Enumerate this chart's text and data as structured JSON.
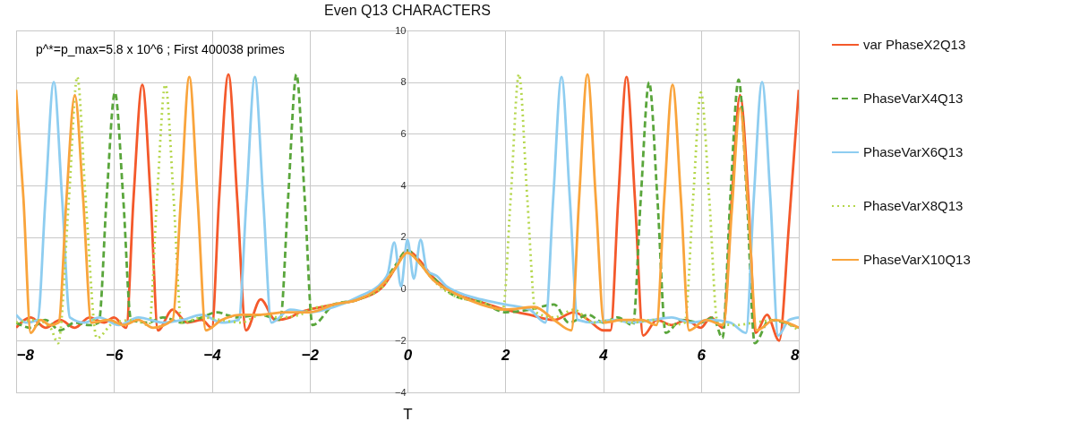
{
  "chart_data": {
    "type": "line",
    "title": "Even Q13 CHARACTERS",
    "xlabel": "T",
    "xlim": [
      -8,
      8
    ],
    "xticks": [
      -8,
      -6,
      -4,
      -2,
      0,
      2,
      4,
      6,
      8
    ],
    "ylim": [
      -4,
      10
    ],
    "yticks": [
      -4,
      -2,
      0,
      2,
      4,
      6,
      8,
      10
    ],
    "grid": true,
    "legend": "right",
    "annotations": [
      "p^*=p_max=5.8 x 10^6 ; First 400038 primes"
    ],
    "series": [
      {
        "name": "var PhaseX2Q13",
        "color": "#f4592b",
        "line_style": "solid",
        "x": [
          -8,
          -7.7,
          -7.4,
          -7.1,
          -6.8,
          -6.5,
          -6.2,
          -6.0,
          -5.75,
          -5.6,
          -5.42,
          -5.25,
          -5.1,
          -4.8,
          -4.5,
          -4.2,
          -4.0,
          -3.85,
          -3.66,
          -3.48,
          -3.3,
          -3.0,
          -2.7,
          -2.4,
          -2.2,
          -2,
          -1.5,
          -1,
          -0.5,
          -0.25,
          0,
          0.25,
          0.5,
          1,
          1.5,
          2,
          2.5,
          3,
          3.4,
          3.7,
          4.0,
          4.15,
          4.31,
          4.48,
          4.65,
          4.82,
          5.1,
          5.4,
          5.7,
          6.0,
          6.2,
          6.45,
          6.63,
          6.8,
          6.97,
          7.12,
          7.35,
          7.6,
          7.8,
          8
        ],
        "values": [
          -1.5,
          -1.1,
          -1.5,
          -1.2,
          -1.5,
          -1.1,
          -1.3,
          -1.1,
          -1.5,
          3.5,
          7.9,
          3.5,
          -1.6,
          -0.8,
          -1.3,
          -1.2,
          -1.5,
          3.5,
          8.3,
          3.5,
          -1.6,
          -0.4,
          -1.2,
          -1.1,
          -0.9,
          -0.8,
          -0.6,
          -0.4,
          0.1,
          0.8,
          1.5,
          1.1,
          0.5,
          -0.2,
          -0.5,
          -0.8,
          -1.0,
          -1.2,
          -0.9,
          -1.2,
          -1.6,
          -1.6,
          3.5,
          8.2,
          3.5,
          -1.8,
          -1.2,
          -1.4,
          -1.2,
          -1.5,
          -1.1,
          -1.5,
          3.5,
          7.5,
          3.5,
          -1.7,
          -1.0,
          -2.0,
          2.5,
          7.7
        ]
      },
      {
        "name": "PhaseVarX4Q13",
        "color": "#5aa63c",
        "line_style": "dashed",
        "x": [
          -8,
          -7.7,
          -7.4,
          -7.1,
          -6.8,
          -6.5,
          -6.31,
          -6.15,
          -5.98,
          -5.81,
          -5.65,
          -5.3,
          -5.0,
          -4.6,
          -4.2,
          -3.9,
          -3.5,
          -3.0,
          -2.6,
          -2.44,
          -2.27,
          -2.1,
          -1.94,
          -1.5,
          -1,
          -0.5,
          -0.25,
          0,
          0.25,
          0.5,
          1,
          1.5,
          2,
          2.5,
          3.0,
          3.3,
          3.7,
          4.0,
          4.3,
          4.61,
          4.77,
          4.94,
          5.11,
          5.28,
          5.6,
          6.0,
          6.25,
          6.44,
          6.6,
          6.77,
          6.94,
          7.1,
          7.4,
          7.7,
          8
        ],
        "values": [
          -1.3,
          -1.5,
          -1.2,
          -1.6,
          -1.3,
          -1.4,
          -1.3,
          3.5,
          7.6,
          3.5,
          -1.2,
          -1.3,
          -1.1,
          -1.3,
          -1.1,
          -0.9,
          -1.1,
          -1.0,
          -1.2,
          3.5,
          8.3,
          3.5,
          -1.4,
          -0.6,
          -0.4,
          0.2,
          0.9,
          1.5,
          1.0,
          0.5,
          -0.3,
          -0.5,
          -0.9,
          -0.8,
          -0.6,
          -1.3,
          -1.0,
          -1.3,
          -1.1,
          -1.4,
          3.5,
          8.0,
          3.5,
          -1.7,
          -1.2,
          -1.3,
          -1.1,
          -1.9,
          3.5,
          8.1,
          3.5,
          -2.1,
          -1.2,
          -1.3,
          -1.5
        ]
      },
      {
        "name": "PhaseVarX6Q13",
        "color": "#8ecdf0",
        "line_style": "solid",
        "x": [
          -8,
          -7.8,
          -7.56,
          -7.4,
          -7.23,
          -7.06,
          -6.9,
          -6.6,
          -6.3,
          -5.9,
          -5.5,
          -5.0,
          -4.6,
          -4.2,
          -3.8,
          -3.45,
          -3.29,
          -3.12,
          -2.95,
          -2.78,
          -2.4,
          -2.0,
          -1.5,
          -1.0,
          -0.5,
          -0.4,
          -0.27,
          -0.13,
          0,
          0.13,
          0.27,
          0.4,
          0.6,
          0.8,
          1,
          1.5,
          2,
          2.5,
          2.82,
          2.98,
          3.15,
          3.32,
          3.48,
          3.8,
          4.2,
          4.6,
          5.0,
          5.4,
          5.8,
          6.2,
          6.6,
          6.92,
          7.08,
          7.25,
          7.42,
          7.58,
          7.8,
          8
        ],
        "values": [
          -1.0,
          -1.3,
          -1.2,
          3.5,
          8.0,
          3.5,
          -1.1,
          -1.3,
          -1.1,
          -1.4,
          -1.1,
          -1.3,
          -1.2,
          -1.0,
          -1.3,
          -1.2,
          3.5,
          8.2,
          3.5,
          -1.3,
          -0.8,
          -0.9,
          -0.7,
          -0.3,
          0.3,
          0.6,
          1.8,
          0.1,
          1.9,
          0.4,
          1.9,
          0.7,
          0.5,
          0.1,
          -0.1,
          -0.4,
          -0.6,
          -0.8,
          -1.3,
          3.5,
          8.2,
          3.5,
          -1.2,
          -1.3,
          -1.2,
          -1.3,
          -1.2,
          -1.1,
          -1.3,
          -1.2,
          -1.3,
          -1.7,
          3.5,
          8.0,
          3.5,
          -1.8,
          -1.2,
          -1.1
        ]
      },
      {
        "name": "PhaseVarX8Q13",
        "color": "#b4d64a",
        "line_style": "dotted",
        "x": [
          -8,
          -7.6,
          -7.3,
          -7.14,
          -6.92,
          -6.75,
          -6.58,
          -6.35,
          -6.0,
          -5.6,
          -5.28,
          -5.12,
          -4.95,
          -4.78,
          -4.62,
          -4.2,
          -3.8,
          -3.4,
          -3.0,
          -2.6,
          -2.2,
          -2,
          -1.5,
          -1,
          -0.5,
          -0.25,
          0,
          0.25,
          0.5,
          1,
          1.5,
          1.95,
          2.11,
          2.28,
          2.45,
          2.62,
          3.0,
          3.4,
          3.8,
          4.2,
          4.6,
          5.0,
          5.4,
          5.67,
          5.84,
          6.0,
          6.17,
          6.34,
          6.7,
          7.1,
          7.5,
          8
        ],
        "values": [
          -1.3,
          -1.2,
          -1.5,
          -2.1,
          3.5,
          8.2,
          3.5,
          -1.9,
          -1.3,
          -1.2,
          -1.4,
          3.5,
          7.9,
          3.5,
          -1.3,
          -1.1,
          -1.2,
          -1.3,
          -1.0,
          -1.1,
          -1.0,
          -0.8,
          -0.6,
          -0.4,
          0.1,
          0.8,
          1.4,
          1.0,
          0.4,
          -0.3,
          -0.5,
          -0.8,
          3.5,
          8.3,
          3.5,
          -0.9,
          -1.1,
          -0.8,
          -1.3,
          -1.2,
          -1.3,
          -1.2,
          -1.4,
          -1.3,
          3.5,
          7.6,
          3.5,
          -1.3,
          -1.4,
          -1.3,
          -1.2,
          -1.6
        ]
      },
      {
        "name": "PhaseVarX10Q13",
        "color": "#f9a43c",
        "line_style": "solid",
        "x": [
          -8,
          -7.85,
          -7.7,
          -7.5,
          -7.3,
          -7.13,
          -6.97,
          -6.8,
          -6.63,
          -6.46,
          -6.1,
          -5.8,
          -5.5,
          -5.2,
          -4.8,
          -4.63,
          -4.46,
          -4.29,
          -4.12,
          -3.8,
          -3.4,
          -3.0,
          -2.5,
          -2,
          -1.5,
          -1,
          -0.5,
          -0.25,
          0,
          0.25,
          0.5,
          1,
          1.5,
          2,
          2.6,
          3.0,
          3.35,
          3.51,
          3.68,
          3.85,
          4.02,
          4.4,
          4.8,
          5.09,
          5.25,
          5.42,
          5.59,
          5.76,
          6.1,
          6.46,
          6.63,
          6.8,
          6.97,
          7.14,
          7.5,
          8
        ],
        "values": [
          7.7,
          3.5,
          -1.7,
          -1.2,
          -1.4,
          -1.3,
          3.5,
          7.5,
          3.5,
          -1.3,
          -1.2,
          -1.4,
          -1.2,
          -1.5,
          -1.2,
          3.5,
          8.2,
          3.5,
          -1.6,
          -1.2,
          -1.0,
          -1.0,
          -0.9,
          -0.9,
          -0.6,
          -0.4,
          0.2,
          0.8,
          1.4,
          1.0,
          0.4,
          -0.2,
          -0.6,
          -0.8,
          -0.7,
          -1.2,
          -1.6,
          3.5,
          8.3,
          3.5,
          -1.3,
          -1.2,
          -1.2,
          -1.4,
          3.5,
          7.9,
          3.5,
          -1.6,
          -1.2,
          -1.4,
          3.0,
          7.0,
          3.0,
          -1.6,
          -1.2,
          -1.5
        ]
      }
    ]
  }
}
